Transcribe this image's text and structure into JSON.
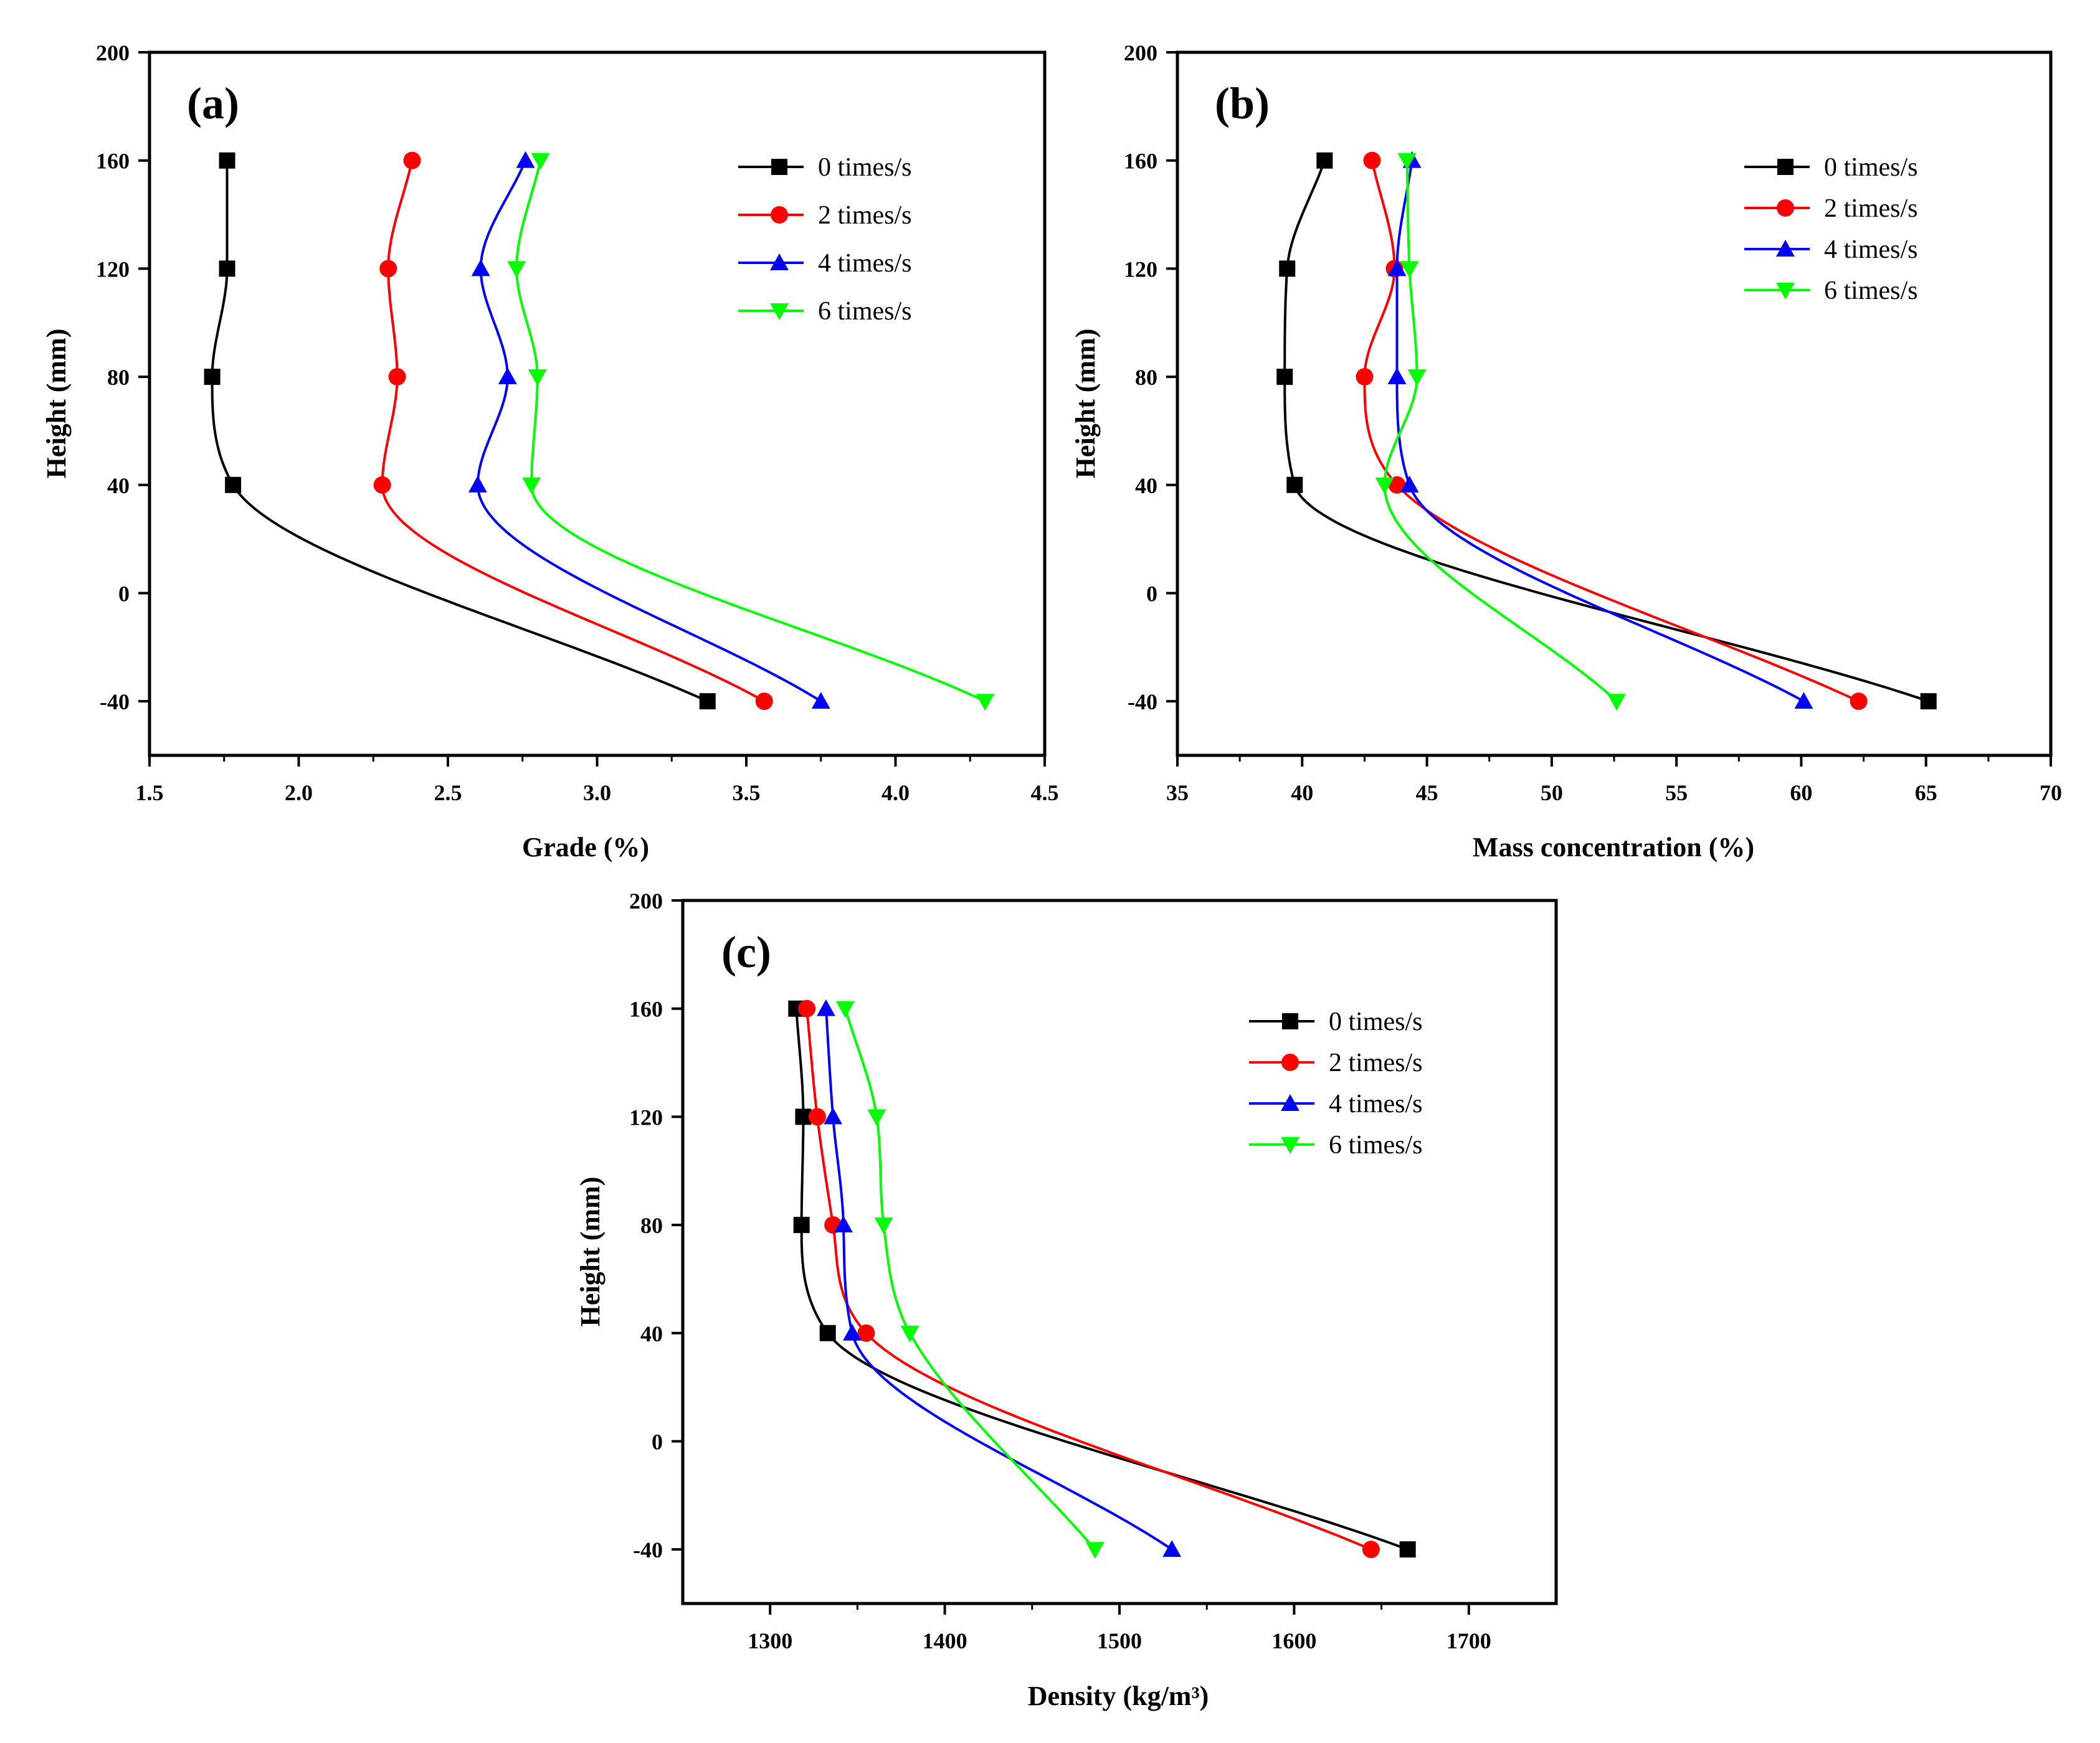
{
  "figure": {
    "colors": {
      "s0": "#000000",
      "s2": "#ff0000",
      "s4": "#0000ff",
      "s6": "#00ff00"
    }
  },
  "chart_data": [
    {
      "type": "line",
      "panel_label": "(a)",
      "xlabel": "Grade (%)",
      "ylabel": "Height (mm)",
      "xlim": [
        1.5,
        4.5
      ],
      "ylim": [
        -60,
        200
      ],
      "xticks": [
        "1.5",
        "2.0",
        "2.5",
        "3.0",
        "3.5",
        "4.0",
        "4.5"
      ],
      "yticks": [
        "-40",
        "0",
        "40",
        "80",
        "120",
        "160",
        "200"
      ],
      "legend_position": "top-right",
      "series": [
        {
          "name": "0 times/s",
          "marker": "square",
          "x": [
            1.78,
            1.71,
            1.76,
            1.76,
            3.37
          ],
          "y": [
            40,
            80,
            120,
            160,
            -40
          ]
        },
        {
          "name": "2 times/s",
          "marker": "circle",
          "x": [
            2.28,
            2.33,
            2.3,
            2.38,
            3.56
          ],
          "y": [
            40,
            80,
            120,
            160,
            -40
          ]
        },
        {
          "name": "4 times/s",
          "marker": "triangle-up",
          "x": [
            2.6,
            2.7,
            2.61,
            2.76,
            3.75
          ],
          "y": [
            40,
            80,
            120,
            160,
            -40
          ]
        },
        {
          "name": "6 times/s",
          "marker": "triangle-down",
          "x": [
            2.78,
            2.8,
            2.73,
            2.81,
            4.3
          ],
          "y": [
            40,
            80,
            120,
            160,
            -40
          ]
        }
      ]
    },
    {
      "type": "line",
      "panel_label": "(b)",
      "xlabel": "Mass concentration (%)",
      "ylabel": "Height (mm)",
      "xlim": [
        35,
        70
      ],
      "ylim": [
        -60,
        200
      ],
      "xticks": [
        "35",
        "40",
        "45",
        "50",
        "55",
        "60",
        "65",
        "70"
      ],
      "yticks": [
        "-40",
        "0",
        "40",
        "80",
        "120",
        "160",
        "200"
      ],
      "legend_position": "top-right",
      "series": [
        {
          "name": "0 times/s",
          "marker": "square",
          "x": [
            39.7,
            39.3,
            39.4,
            40.9,
            65.1
          ],
          "y": [
            40,
            80,
            120,
            160,
            -40
          ]
        },
        {
          "name": "2 times/s",
          "marker": "circle",
          "x": [
            43.8,
            42.5,
            43.7,
            42.8,
            62.3
          ],
          "y": [
            40,
            80,
            120,
            160,
            -40
          ]
        },
        {
          "name": "4 times/s",
          "marker": "triangle-up",
          "x": [
            44.3,
            43.8,
            43.8,
            44.4,
            60.1
          ],
          "y": [
            40,
            80,
            120,
            160,
            -40
          ]
        },
        {
          "name": "6 times/s",
          "marker": "triangle-down",
          "x": [
            43.3,
            44.6,
            44.3,
            44.2,
            52.6
          ],
          "y": [
            40,
            80,
            120,
            160,
            -40
          ]
        }
      ]
    },
    {
      "type": "line",
      "panel_label": "(c)",
      "xlabel": "Density (kg/m³)",
      "ylabel": "Height (mm)",
      "xlim": [
        1250,
        1750
      ],
      "ylim": [
        -60,
        200
      ],
      "xticks": [
        "1300",
        "1400",
        "1500",
        "1600",
        "1700"
      ],
      "yticks": [
        "-40",
        "0",
        "40",
        "80",
        "120",
        "160",
        "200"
      ],
      "legend_position": "top-right",
      "series": [
        {
          "name": "0 times/s",
          "marker": "square",
          "x": [
            1333,
            1318,
            1319,
            1315,
            1665
          ],
          "y": [
            40,
            80,
            120,
            160,
            -40
          ]
        },
        {
          "name": "2 times/s",
          "marker": "circle",
          "x": [
            1355,
            1336,
            1327,
            1321,
            1644
          ],
          "y": [
            40,
            80,
            120,
            160,
            -40
          ]
        },
        {
          "name": "4 times/s",
          "marker": "triangle-up",
          "x": [
            1347,
            1342,
            1336,
            1332,
            1530
          ],
          "y": [
            40,
            80,
            120,
            160,
            -40
          ]
        },
        {
          "name": "6 times/s",
          "marker": "triangle-down",
          "x": [
            1380,
            1365,
            1361,
            1343,
            1486
          ],
          "y": [
            40,
            80,
            120,
            160,
            -40
          ]
        }
      ]
    }
  ]
}
